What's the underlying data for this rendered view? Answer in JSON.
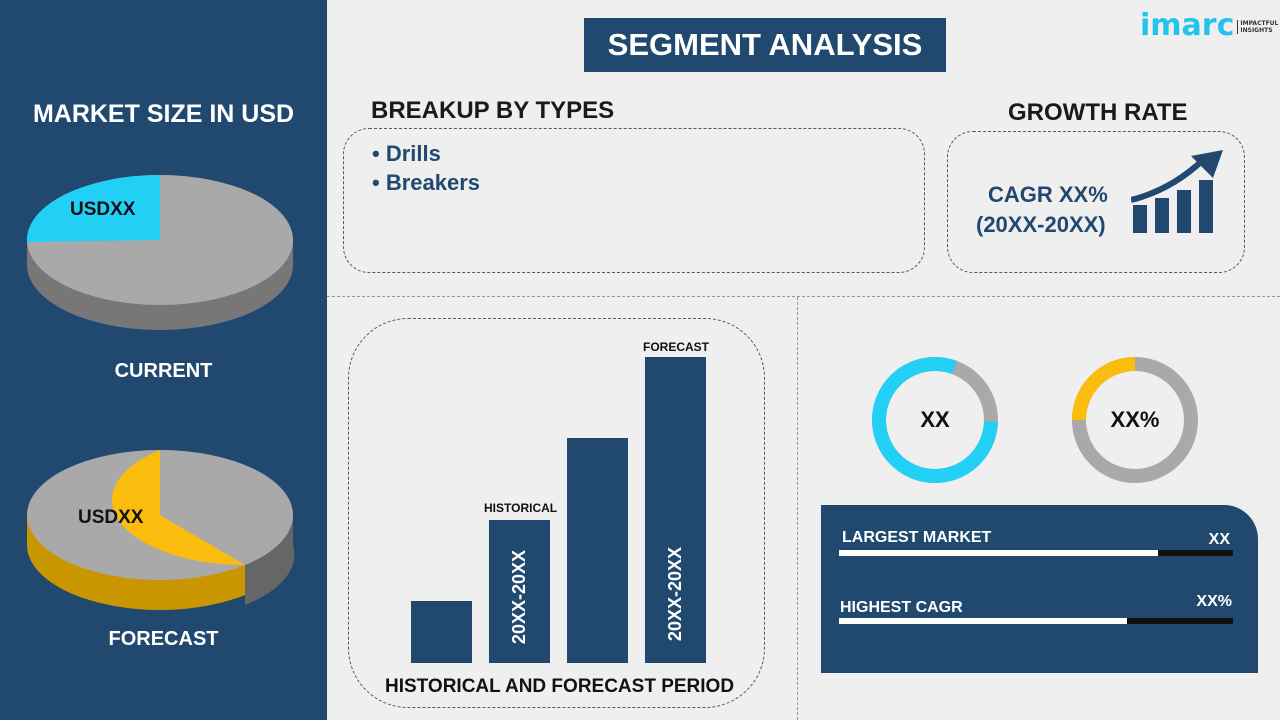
{
  "logo": {
    "text": "imarc",
    "tagline": "IMPACTFUL INSIGHTS"
  },
  "title": "SEGMENT ANALYSIS",
  "left": {
    "heading": "MARKET SIZE IN USD",
    "current": {
      "label": "CURRENT",
      "value": "USDXX",
      "share": 0.2
    },
    "forecast": {
      "label": "FORECAST",
      "value": "USDXX",
      "share": 0.6
    }
  },
  "breakup": {
    "heading": "BREAKUP BY TYPES",
    "items": [
      "• Drills",
      "• Breakers"
    ]
  },
  "growth": {
    "heading": "GROWTH RATE",
    "line1": "CAGR XX%",
    "line2": "(20XX-20XX)"
  },
  "period": {
    "caption": "HISTORICAL AND FORECAST PERIOD",
    "historical": "HISTORICAL",
    "forecast": "FORECAST",
    "hist_range": "20XX-20XX",
    "fore_range": "20XX-20XX"
  },
  "donuts": [
    {
      "label": "XX",
      "fill": 0.8,
      "color": "#22d0f5"
    },
    {
      "label": "XX%",
      "fill": 0.25,
      "color": "#fbbd0d"
    }
  ],
  "stats": [
    {
      "label": "LARGEST MARKET",
      "value": "XX",
      "fill": 0.81
    },
    {
      "label": "HIGHEST CAGR",
      "value": "XX%",
      "fill": 0.73
    }
  ],
  "colors": {
    "navy": "#21496f",
    "cyan": "#22d0f5",
    "yellow": "#fbbd0d",
    "gray": "#a9a9a9"
  }
}
